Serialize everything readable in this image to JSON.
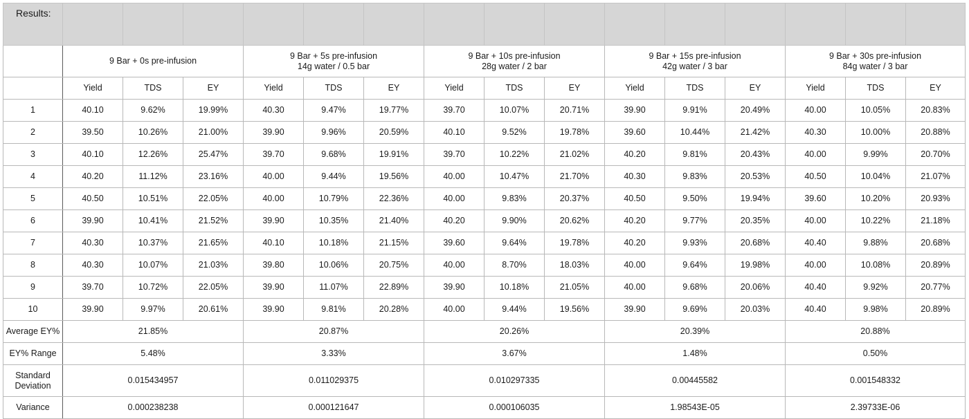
{
  "title": "Results:",
  "groups": [
    {
      "line1": "9 Bar + 0s pre-infusion",
      "line2": ""
    },
    {
      "line1": "9 Bar + 5s pre-infusion",
      "line2": "14g water / 0.5 bar"
    },
    {
      "line1": "9 Bar + 10s pre-infusion",
      "line2": "28g water / 2 bar"
    },
    {
      "line1": "9 Bar + 15s pre-infusion",
      "line2": "42g water / 3 bar"
    },
    {
      "line1": "9 Bar + 30s pre-infusion",
      "line2": "84g water / 3 bar"
    }
  ],
  "sub_headers": [
    "Yield",
    "TDS",
    "EY"
  ],
  "rows": [
    {
      "n": "1",
      "cells": [
        "40.10",
        "9.62%",
        "19.99%",
        "40.30",
        "9.47%",
        "19.77%",
        "39.70",
        "10.07%",
        "20.71%",
        "39.90",
        "9.91%",
        "20.49%",
        "40.00",
        "10.05%",
        "20.83%"
      ]
    },
    {
      "n": "2",
      "cells": [
        "39.50",
        "10.26%",
        "21.00%",
        "39.90",
        "9.96%",
        "20.59%",
        "40.10",
        "9.52%",
        "19.78%",
        "39.60",
        "10.44%",
        "21.42%",
        "40.30",
        "10.00%",
        "20.88%"
      ]
    },
    {
      "n": "3",
      "cells": [
        "40.10",
        "12.26%",
        "25.47%",
        "39.70",
        "9.68%",
        "19.91%",
        "39.70",
        "10.22%",
        "21.02%",
        "40.20",
        "9.81%",
        "20.43%",
        "40.00",
        "9.99%",
        "20.70%"
      ]
    },
    {
      "n": "4",
      "cells": [
        "40.20",
        "11.12%",
        "23.16%",
        "40.00",
        "9.44%",
        "19.56%",
        "40.00",
        "10.47%",
        "21.70%",
        "40.30",
        "9.83%",
        "20.53%",
        "40.50",
        "10.04%",
        "21.07%"
      ]
    },
    {
      "n": "5",
      "cells": [
        "40.50",
        "10.51%",
        "22.05%",
        "40.00",
        "10.79%",
        "22.36%",
        "40.00",
        "9.83%",
        "20.37%",
        "40.50",
        "9.50%",
        "19.94%",
        "39.60",
        "10.20%",
        "20.93%"
      ]
    },
    {
      "n": "6",
      "cells": [
        "39.90",
        "10.41%",
        "21.52%",
        "39.90",
        "10.35%",
        "21.40%",
        "40.20",
        "9.90%",
        "20.62%",
        "40.20",
        "9.77%",
        "20.35%",
        "40.00",
        "10.22%",
        "21.18%"
      ]
    },
    {
      "n": "7",
      "cells": [
        "40.30",
        "10.37%",
        "21.65%",
        "40.10",
        "10.18%",
        "21.15%",
        "39.60",
        "9.64%",
        "19.78%",
        "40.20",
        "9.93%",
        "20.68%",
        "40.40",
        "9.88%",
        "20.68%"
      ]
    },
    {
      "n": "8",
      "cells": [
        "40.30",
        "10.07%",
        "21.03%",
        "39.80",
        "10.06%",
        "20.75%",
        "40.00",
        "8.70%",
        "18.03%",
        "40.00",
        "9.64%",
        "19.98%",
        "40.00",
        "10.08%",
        "20.89%"
      ]
    },
    {
      "n": "9",
      "cells": [
        "39.70",
        "10.72%",
        "22.05%",
        "39.90",
        "11.07%",
        "22.89%",
        "39.90",
        "10.18%",
        "21.05%",
        "40.00",
        "9.68%",
        "20.06%",
        "40.40",
        "9.92%",
        "20.77%"
      ]
    },
    {
      "n": "10",
      "cells": [
        "39.90",
        "9.97%",
        "20.61%",
        "39.90",
        "9.81%",
        "20.28%",
        "40.00",
        "9.44%",
        "19.56%",
        "39.90",
        "9.69%",
        "20.03%",
        "40.40",
        "9.98%",
        "20.89%"
      ]
    }
  ],
  "summary": [
    {
      "label": "Average EY%",
      "values": [
        "21.85%",
        "20.87%",
        "20.26%",
        "20.39%",
        "20.88%"
      ]
    },
    {
      "label": "EY% Range",
      "values": [
        "5.48%",
        "3.33%",
        "3.67%",
        "1.48%",
        "0.50%"
      ]
    },
    {
      "label": "Standard\nDeviation",
      "values": [
        "0.015434957",
        "0.011029375",
        "0.010297335",
        "0.00445582",
        "0.001548332"
      ]
    },
    {
      "label": "Variance",
      "values": [
        "0.000238238",
        "0.000121647",
        "0.000106035",
        "1.98543E-05",
        "2.39733E-06"
      ]
    }
  ]
}
